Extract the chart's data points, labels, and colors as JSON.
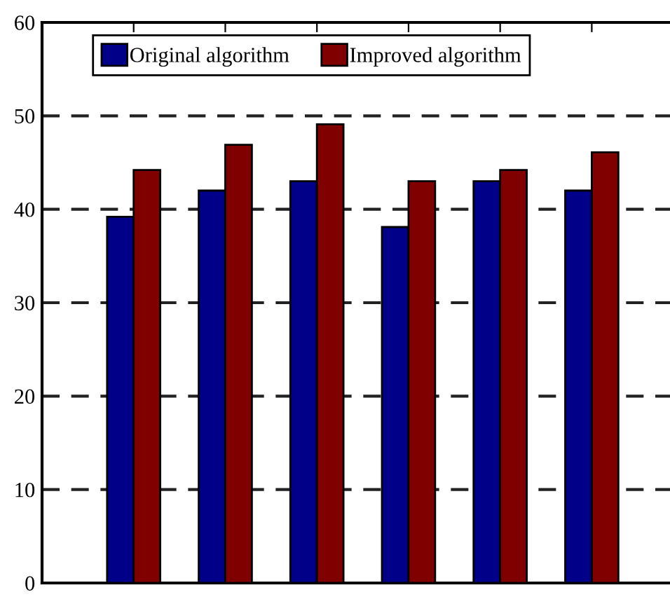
{
  "chart_data": {
    "type": "bar",
    "categories": [
      null,
      null,
      null,
      null,
      null,
      null
    ],
    "series": [
      {
        "name": "Original algorithm",
        "color": "#000088",
        "values": [
          39.2,
          42.0,
          43.0,
          38.1,
          43.0,
          42.0
        ]
      },
      {
        "name": "Improved algorithm",
        "color": "#800000",
        "values": [
          44.2,
          46.9,
          49.1,
          43.0,
          44.2,
          46.1
        ]
      }
    ],
    "ylim": [
      0,
      60
    ],
    "yticks": [
      0,
      10,
      20,
      30,
      40,
      50,
      60
    ],
    "grid": "y",
    "legend": "top"
  }
}
